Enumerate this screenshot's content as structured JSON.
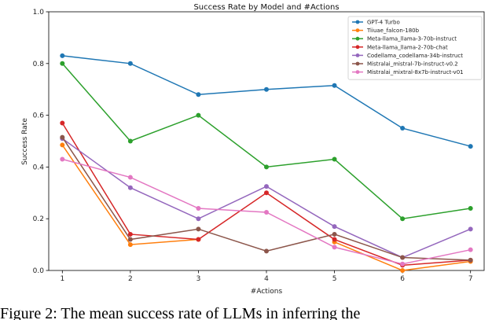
{
  "chart_data": {
    "type": "line",
    "title": "Success Rate by Model and #Actions",
    "xlabel": "#Actions",
    "ylabel": "Success Rate",
    "x": [
      1,
      2,
      3,
      4,
      5,
      6,
      7
    ],
    "xlim": [
      0.8,
      7.2
    ],
    "ylim": [
      0.0,
      1.0
    ],
    "yticks": [
      0.0,
      0.2,
      0.4,
      0.6,
      0.8,
      1.0
    ],
    "ytick_labels": [
      "0.0",
      "0.2",
      "0.4",
      "0.6",
      "0.8",
      "1.0"
    ],
    "xticks": [
      1,
      2,
      3,
      4,
      5,
      6,
      7
    ],
    "xtick_labels": [
      "1",
      "2",
      "3",
      "4",
      "5",
      "6",
      "7"
    ],
    "grid": false,
    "legend_position": "top-right",
    "series": [
      {
        "name": "GPT-4 Turbo",
        "color": "#1f77b4",
        "values": [
          0.83,
          0.8,
          0.68,
          0.7,
          0.715,
          0.55,
          0.48
        ]
      },
      {
        "name": "Tiiuae_falcon-180b",
        "color": "#ff7f0e",
        "values": [
          0.485,
          0.1,
          0.12,
          null,
          0.11,
          0.0,
          0.035
        ]
      },
      {
        "name": "Meta-llama_llama-3-70b-instruct",
        "color": "#2ca02c",
        "values": [
          0.8,
          0.5,
          0.6,
          0.4,
          0.43,
          0.2,
          0.24
        ]
      },
      {
        "name": "Meta-llama_llama-2-70b-chat",
        "color": "#d62728",
        "values": [
          0.57,
          0.14,
          0.12,
          0.3,
          0.12,
          0.02,
          0.04
        ]
      },
      {
        "name": "Codellama_codellama-34b-instruct",
        "color": "#9467bd",
        "values": [
          0.51,
          0.32,
          0.2,
          0.325,
          0.17,
          0.05,
          0.16
        ]
      },
      {
        "name": "Mistralai_mistral-7b-instruct-v0.2",
        "color": "#8c564b",
        "values": [
          0.515,
          0.12,
          0.16,
          0.075,
          0.14,
          0.05,
          0.04
        ]
      },
      {
        "name": "Mistralai_mixtral-8x7b-instruct-v01",
        "color": "#e377c2",
        "values": [
          0.43,
          0.36,
          0.24,
          0.225,
          0.09,
          0.025,
          0.08
        ]
      }
    ]
  },
  "caption": "Figure 2: The mean success rate of LLMs in inferring the"
}
